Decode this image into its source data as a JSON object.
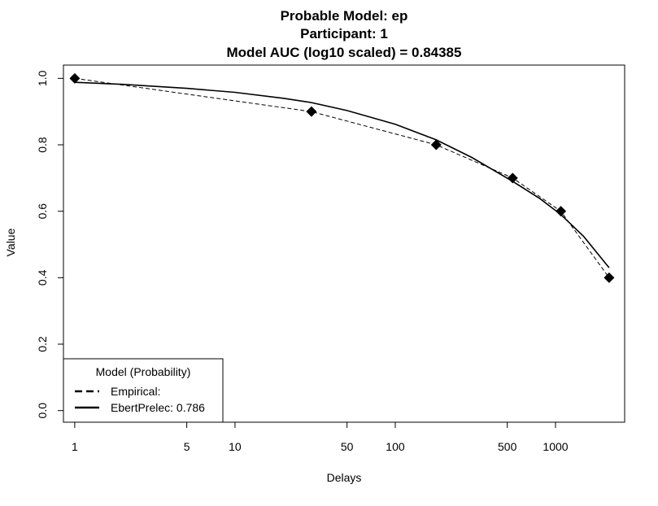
{
  "chart_data": {
    "type": "line",
    "title_lines": [
      "Probable Model: ep",
      "Participant: 1",
      "Model AUC (log10 scaled) = 0.84385"
    ],
    "xlabel": "Delays",
    "ylabel": "Value",
    "x_scale": "log",
    "xlim": [
      0.85,
      2700
    ],
    "ylim": [
      -0.035,
      1.04
    ],
    "x_ticks": [
      1,
      5,
      10,
      50,
      100,
      500,
      1000
    ],
    "x_tick_labels": [
      "1",
      "5",
      "10",
      "50",
      "100",
      "500",
      "1000"
    ],
    "y_ticks": [
      0.0,
      0.2,
      0.4,
      0.6,
      0.8,
      1.0
    ],
    "y_tick_labels": [
      "0.0",
      "0.2",
      "0.4",
      "0.6",
      "0.8",
      "1.0"
    ],
    "grid": false,
    "legend_position": "bottom-left",
    "legend_title": "Model (Probability)",
    "series": [
      {
        "name": "Empirical:",
        "style": "dashed",
        "markers": "diamond",
        "x": [
          1,
          30,
          180,
          540,
          1080,
          2160
        ],
        "y": [
          1.0,
          0.9,
          0.8,
          0.7,
          0.6,
          0.4
        ]
      },
      {
        "name": "EbertPrelec: 0.786",
        "style": "solid",
        "markers": "none",
        "x": [
          1,
          2,
          5,
          10,
          20,
          30,
          50,
          100,
          180,
          300,
          540,
          800,
          1080,
          1500,
          2160
        ],
        "y": [
          0.988,
          0.982,
          0.97,
          0.958,
          0.94,
          0.927,
          0.903,
          0.862,
          0.815,
          0.762,
          0.69,
          0.638,
          0.59,
          0.524,
          0.43
        ]
      }
    ]
  }
}
